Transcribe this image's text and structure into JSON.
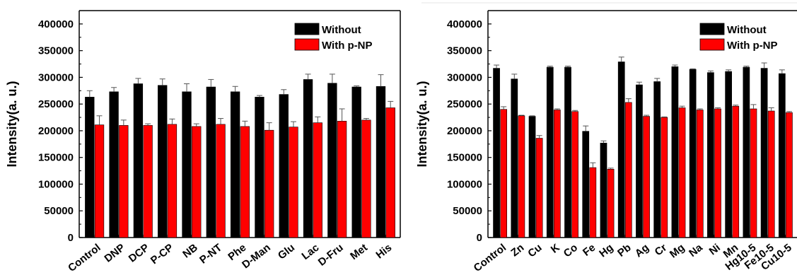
{
  "chart_data": [
    {
      "type": "bar",
      "ylabel": "Intensity(a. u.)",
      "ylim": [
        0,
        425000
      ],
      "yticks": [
        0,
        50000,
        100000,
        150000,
        200000,
        250000,
        300000,
        350000,
        400000
      ],
      "grid": false,
      "legend_position": "top-right",
      "categories": [
        "Control",
        "DNP",
        "DCP",
        "P-CP",
        "NB",
        "P-NT",
        "Phe",
        "D-Man",
        "Glu",
        "Lac",
        "D-Fru",
        "Met",
        "His"
      ],
      "series": [
        {
          "name": "Without",
          "color": "#000000",
          "values": [
            263000,
            273000,
            288000,
            285000,
            273000,
            282000,
            273000,
            263000,
            268000,
            296000,
            289000,
            282000,
            283000
          ],
          "errors": [
            12000,
            8000,
            10000,
            12000,
            15000,
            14000,
            10000,
            3000,
            9000,
            10000,
            17000,
            2000,
            22000
          ]
        },
        {
          "name": "With p-NP",
          "color": "#ff0000",
          "values": [
            211000,
            210000,
            210000,
            212000,
            208000,
            212000,
            208000,
            201000,
            207000,
            215000,
            218000,
            220000,
            243000
          ],
          "errors": [
            17000,
            10000,
            3000,
            10000,
            5000,
            11000,
            10000,
            14000,
            10000,
            11000,
            23000,
            3000,
            12000
          ]
        }
      ]
    },
    {
      "type": "bar",
      "ylabel": "Intensity(a. u.)",
      "ylim": [
        0,
        425000
      ],
      "yticks": [
        0,
        50000,
        100000,
        150000,
        200000,
        250000,
        300000,
        350000,
        400000
      ],
      "grid": false,
      "legend_position": "top-right",
      "categories": [
        "Control",
        "Zn",
        "Cu",
        "K",
        "Co",
        "Fe",
        "Hg",
        "Pb",
        "Ag",
        "Cr",
        "Mg",
        "Na",
        "Ni",
        "Mn",
        "Hg10-5",
        "Fe10-5",
        "Cu10-5"
      ],
      "series": [
        {
          "name": "Without",
          "color": "#000000",
          "values": [
            317000,
            297000,
            227000,
            319000,
            319000,
            199000,
            177000,
            329000,
            286000,
            292000,
            320000,
            315000,
            309000,
            311000,
            319000,
            317000,
            307000
          ],
          "errors": [
            6000,
            9000,
            1000,
            2000,
            2000,
            10000,
            4000,
            9000,
            5000,
            6000,
            3000,
            1000,
            3000,
            3000,
            2000,
            10000,
            7000
          ]
        },
        {
          "name": "With p-NP",
          "color": "#ff0000",
          "values": [
            240000,
            228000,
            186000,
            239000,
            236000,
            131000,
            128000,
            253000,
            227000,
            225000,
            243000,
            239000,
            241000,
            246000,
            241000,
            237000,
            234000
          ],
          "errors": [
            5000,
            1000,
            5000,
            2000,
            2000,
            9000,
            2000,
            7000,
            2000,
            1000,
            3000,
            2000,
            2000,
            2000,
            8000,
            6000,
            2000
          ]
        }
      ]
    }
  ]
}
